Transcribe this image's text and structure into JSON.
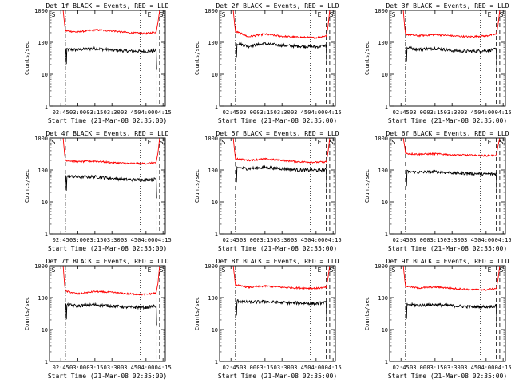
{
  "colors": {
    "events": "#000000",
    "lld": "#ff0000",
    "frame": "#000000"
  },
  "chart_data": [
    {
      "type": "line",
      "title": "Det 1f BLACK = Events, RED = LLD",
      "xlabel": "Start Time (21-Mar-08 02:35:00)",
      "ylabel": "Counts/sec",
      "yscale": "log",
      "ylim": [
        1,
        1000
      ],
      "xlim": [
        "02:35",
        "04:17"
      ],
      "x_ticks": [
        "02:45",
        "03:00",
        "03:15",
        "03:30",
        "03:45",
        "04:00",
        "04:15"
      ],
      "y_ticks": [
        "1",
        "10",
        "100",
        "1000"
      ],
      "markers": [
        {
          "label": "S",
          "time": "02:35"
        },
        {
          "label": "E",
          "time": "04:03"
        },
        {
          "label": "S",
          "time": "04:14"
        }
      ],
      "vlines": [
        {
          "time": "02:49",
          "style": "dash-dot"
        },
        {
          "time": "03:55",
          "style": "dotted"
        },
        {
          "time": "04:09",
          "style": "dashed"
        },
        {
          "time": "04:12",
          "style": "dashed"
        }
      ],
      "series": [
        {
          "name": "Events",
          "x": [
            "02:49",
            "03:00",
            "03:15",
            "03:30",
            "03:45",
            "04:00",
            "04:09"
          ],
          "values": [
            60,
            58,
            64,
            57,
            53,
            52,
            55
          ]
        },
        {
          "name": "LLD",
          "x": [
            "02:49",
            "03:00",
            "03:15",
            "03:30",
            "03:45",
            "04:00",
            "04:09"
          ],
          "values": [
            230,
            210,
            245,
            230,
            200,
            190,
            210
          ]
        }
      ]
    },
    {
      "type": "line",
      "title": "Det 2f BLACK = Events, RED = LLD",
      "xlabel": "Start Time (21-Mar-08 02:35:00)",
      "ylabel": "Counts/sec",
      "yscale": "log",
      "ylim": [
        1,
        1000
      ],
      "xlim": [
        "02:35",
        "04:17"
      ],
      "x_ticks": [
        "02:45",
        "03:00",
        "03:15",
        "03:30",
        "03:45",
        "04:00",
        "04:15"
      ],
      "y_ticks": [
        "1",
        "10",
        "100",
        "1000"
      ],
      "markers": [
        {
          "label": "S",
          "time": "02:35"
        },
        {
          "label": "E",
          "time": "04:03"
        },
        {
          "label": "S",
          "time": "04:14"
        }
      ],
      "vlines": [
        {
          "time": "02:49",
          "style": "dash-dot"
        },
        {
          "time": "03:55",
          "style": "dotted"
        },
        {
          "time": "04:09",
          "style": "dashed"
        },
        {
          "time": "04:12",
          "style": "dashed"
        }
      ],
      "series": [
        {
          "name": "Events",
          "x": [
            "02:49",
            "03:00",
            "03:15",
            "03:30",
            "03:45",
            "04:00",
            "04:09"
          ],
          "values": [
            95,
            75,
            90,
            80,
            75,
            72,
            80
          ]
        },
        {
          "name": "LLD",
          "x": [
            "02:49",
            "03:00",
            "03:15",
            "03:30",
            "03:45",
            "04:00",
            "04:09"
          ],
          "values": [
            220,
            150,
            180,
            155,
            145,
            140,
            160
          ]
        }
      ]
    },
    {
      "type": "line",
      "title": "Det 3f BLACK = Events, RED = LLD",
      "xlabel": "Start Time (21-Mar-08 02:35:00)",
      "ylabel": "Counts/sec",
      "yscale": "log",
      "ylim": [
        1,
        1000
      ],
      "xlim": [
        "02:35",
        "04:17"
      ],
      "x_ticks": [
        "02:45",
        "03:00",
        "03:15",
        "03:30",
        "03:45",
        "04:00",
        "04:15"
      ],
      "y_ticks": [
        "1",
        "10",
        "100",
        "1000"
      ],
      "markers": [
        {
          "label": "S",
          "time": "02:35"
        },
        {
          "label": "E",
          "time": "04:03"
        },
        {
          "label": "S",
          "time": "04:14"
        }
      ],
      "vlines": [
        {
          "time": "02:49",
          "style": "dash-dot"
        },
        {
          "time": "03:55",
          "style": "dotted"
        },
        {
          "time": "04:09",
          "style": "dashed"
        },
        {
          "time": "04:12",
          "style": "dashed"
        }
      ],
      "series": [
        {
          "name": "Events",
          "x": [
            "02:49",
            "03:00",
            "03:15",
            "03:30",
            "03:45",
            "04:00",
            "04:09"
          ],
          "values": [
            70,
            60,
            65,
            55,
            52,
            55,
            60
          ]
        },
        {
          "name": "LLD",
          "x": [
            "02:49",
            "03:00",
            "03:15",
            "03:30",
            "03:45",
            "04:00",
            "04:09"
          ],
          "values": [
            180,
            160,
            175,
            160,
            150,
            160,
            180
          ]
        }
      ]
    },
    {
      "type": "line",
      "title": "Det 4f BLACK = Events, RED = LLD",
      "xlabel": "Start Time (21-Mar-08 02:35:00)",
      "ylabel": "Counts/sec",
      "yscale": "log",
      "ylim": [
        1,
        1000
      ],
      "xlim": [
        "02:35",
        "04:17"
      ],
      "x_ticks": [
        "02:45",
        "03:00",
        "03:15",
        "03:30",
        "03:45",
        "04:00",
        "04:15"
      ],
      "y_ticks": [
        "1",
        "10",
        "100",
        "1000"
      ],
      "markers": [
        {
          "label": "S",
          "time": "02:35"
        },
        {
          "label": "E",
          "time": "04:03"
        },
        {
          "label": "S",
          "time": "04:14"
        }
      ],
      "vlines": [
        {
          "time": "02:49",
          "style": "dash-dot"
        },
        {
          "time": "03:55",
          "style": "dotted"
        },
        {
          "time": "04:09",
          "style": "dashed"
        },
        {
          "time": "04:12",
          "style": "dashed"
        }
      ],
      "series": [
        {
          "name": "Events",
          "x": [
            "02:49",
            "03:00",
            "03:15",
            "03:30",
            "03:45",
            "04:00",
            "04:09"
          ],
          "values": [
            65,
            60,
            62,
            55,
            50,
            50,
            52
          ]
        },
        {
          "name": "LLD",
          "x": [
            "02:49",
            "03:00",
            "03:15",
            "03:30",
            "03:45",
            "04:00",
            "04:09"
          ],
          "values": [
            200,
            180,
            190,
            170,
            160,
            160,
            170
          ]
        }
      ]
    },
    {
      "type": "line",
      "title": "Det 5f BLACK = Events, RED = LLD",
      "xlabel": "Start Time (21-Mar-08 02:35:00)",
      "ylabel": "Counts/sec",
      "yscale": "log",
      "ylim": [
        1,
        1000
      ],
      "xlim": [
        "02:35",
        "04:17"
      ],
      "x_ticks": [
        "02:45",
        "03:00",
        "03:15",
        "03:30",
        "03:45",
        "04:00",
        "04:15"
      ],
      "y_ticks": [
        "1",
        "10",
        "100",
        "1000"
      ],
      "markers": [
        {
          "label": "S",
          "time": "02:35"
        },
        {
          "label": "E",
          "time": "04:03"
        },
        {
          "label": "S",
          "time": "04:14"
        }
      ],
      "vlines": [
        {
          "time": "02:49",
          "style": "dash-dot"
        },
        {
          "time": "03:55",
          "style": "dotted"
        },
        {
          "time": "04:09",
          "style": "dashed"
        },
        {
          "time": "04:12",
          "style": "dashed"
        }
      ],
      "series": [
        {
          "name": "Events",
          "x": [
            "02:49",
            "03:00",
            "03:15",
            "03:30",
            "03:45",
            "04:00",
            "04:09"
          ],
          "values": [
            120,
            110,
            120,
            110,
            100,
            98,
            100
          ]
        },
        {
          "name": "LLD",
          "x": [
            "02:49",
            "03:00",
            "03:15",
            "03:30",
            "03:45",
            "04:00",
            "04:09"
          ],
          "values": [
            230,
            200,
            220,
            200,
            180,
            175,
            180
          ]
        }
      ]
    },
    {
      "type": "line",
      "title": "Det 6f BLACK = Events, RED = LLD",
      "xlabel": "Start Time (21-Mar-08 02:35:00)",
      "ylabel": "Counts/sec",
      "yscale": "log",
      "ylim": [
        1,
        1000
      ],
      "xlim": [
        "02:35",
        "04:17"
      ],
      "x_ticks": [
        "02:45",
        "03:00",
        "03:15",
        "03:30",
        "03:45",
        "04:00",
        "04:15"
      ],
      "y_ticks": [
        "1",
        "10",
        "100",
        "1000"
      ],
      "markers": [
        {
          "label": "S",
          "time": "02:35"
        },
        {
          "label": "E",
          "time": "04:03"
        },
        {
          "label": "S",
          "time": "04:14"
        }
      ],
      "vlines": [
        {
          "time": "02:49",
          "style": "dash-dot"
        },
        {
          "time": "03:55",
          "style": "dotted"
        },
        {
          "time": "04:09",
          "style": "dashed"
        },
        {
          "time": "04:12",
          "style": "dashed"
        }
      ],
      "series": [
        {
          "name": "Events",
          "x": [
            "02:49",
            "03:00",
            "03:15",
            "03:30",
            "03:45",
            "04:00",
            "04:09"
          ],
          "values": [
            90,
            85,
            88,
            82,
            78,
            75,
            75
          ]
        },
        {
          "name": "LLD",
          "x": [
            "02:49",
            "03:00",
            "03:15",
            "03:30",
            "03:45",
            "04:00",
            "04:09"
          ],
          "values": [
            330,
            310,
            320,
            300,
            290,
            280,
            290
          ]
        }
      ]
    },
    {
      "type": "line",
      "title": "Det 7f BLACK = Events, RED = LLD",
      "xlabel": "Start Time (21-Mar-08 02:35:00)",
      "ylabel": "Counts/sec",
      "yscale": "log",
      "ylim": [
        1,
        1000
      ],
      "xlim": [
        "02:35",
        "04:17"
      ],
      "x_ticks": [
        "02:45",
        "03:00",
        "03:15",
        "03:30",
        "03:45",
        "04:00",
        "04:15"
      ],
      "y_ticks": [
        "1",
        "10",
        "100",
        "1000"
      ],
      "markers": [
        {
          "label": "S",
          "time": "02:35"
        },
        {
          "label": "E",
          "time": "04:03"
        },
        {
          "label": "S",
          "time": "04:14"
        }
      ],
      "vlines": [
        {
          "time": "02:49",
          "style": "dash-dot"
        },
        {
          "time": "03:55",
          "style": "dotted"
        },
        {
          "time": "04:09",
          "style": "dashed"
        },
        {
          "time": "04:12",
          "style": "dashed"
        }
      ],
      "series": [
        {
          "name": "Events",
          "x": [
            "02:49",
            "03:00",
            "03:15",
            "03:30",
            "03:45",
            "04:00",
            "04:09"
          ],
          "values": [
            60,
            55,
            60,
            55,
            50,
            50,
            55
          ]
        },
        {
          "name": "LLD",
          "x": [
            "02:49",
            "03:00",
            "03:15",
            "03:30",
            "03:45",
            "04:00",
            "04:09"
          ],
          "values": [
            160,
            130,
            155,
            145,
            130,
            125,
            140
          ]
        }
      ]
    },
    {
      "type": "line",
      "title": "Det 8f BLACK = Events, RED = LLD",
      "xlabel": "Start Time (21-Mar-08 02:35:00)",
      "ylabel": "Counts/sec",
      "yscale": "log",
      "ylim": [
        1,
        1000
      ],
      "xlim": [
        "02:35",
        "04:17"
      ],
      "x_ticks": [
        "02:45",
        "03:00",
        "03:15",
        "03:30",
        "03:45",
        "04:00",
        "04:15"
      ],
      "y_ticks": [
        "1",
        "10",
        "100",
        "1000"
      ],
      "markers": [
        {
          "label": "S",
          "time": "02:35"
        },
        {
          "label": "E",
          "time": "04:03"
        },
        {
          "label": "S",
          "time": "04:14"
        }
      ],
      "vlines": [
        {
          "time": "02:49",
          "style": "dash-dot"
        },
        {
          "time": "03:55",
          "style": "dotted"
        },
        {
          "time": "04:09",
          "style": "dashed"
        },
        {
          "time": "04:12",
          "style": "dashed"
        }
      ],
      "series": [
        {
          "name": "Events",
          "x": [
            "02:49",
            "03:00",
            "03:15",
            "03:30",
            "03:45",
            "04:00",
            "04:09"
          ],
          "values": [
            80,
            72,
            75,
            70,
            68,
            66,
            70
          ]
        },
        {
          "name": "LLD",
          "x": [
            "02:49",
            "03:00",
            "03:15",
            "03:30",
            "03:45",
            "04:00",
            "04:09"
          ],
          "values": [
            250,
            210,
            230,
            210,
            200,
            195,
            210
          ]
        }
      ]
    },
    {
      "type": "line",
      "title": "Det 9f BLACK = Events, RED = LLD",
      "xlabel": "Start Time (21-Mar-08 02:35:00)",
      "ylabel": "Counts/sec",
      "yscale": "log",
      "ylim": [
        1,
        1000
      ],
      "xlim": [
        "02:35",
        "04:17"
      ],
      "x_ticks": [
        "02:45",
        "03:00",
        "03:15",
        "03:30",
        "03:45",
        "04:00",
        "04:15"
      ],
      "y_ticks": [
        "1",
        "10",
        "100",
        "1000"
      ],
      "markers": [
        {
          "label": "S",
          "time": "02:35"
        },
        {
          "label": "E",
          "time": "04:03"
        },
        {
          "label": "S",
          "time": "04:14"
        }
      ],
      "vlines": [
        {
          "time": "02:49",
          "style": "dash-dot"
        },
        {
          "time": "03:55",
          "style": "dotted"
        },
        {
          "time": "04:09",
          "style": "dashed"
        },
        {
          "time": "04:12",
          "style": "dashed"
        }
      ],
      "series": [
        {
          "name": "Events",
          "x": [
            "02:49",
            "03:00",
            "03:15",
            "03:30",
            "03:45",
            "04:00",
            "04:09"
          ],
          "values": [
            62,
            58,
            60,
            56,
            52,
            52,
            55
          ]
        },
        {
          "name": "LLD",
          "x": [
            "02:49",
            "03:00",
            "03:15",
            "03:30",
            "03:45",
            "04:00",
            "04:09"
          ],
          "values": [
            230,
            200,
            215,
            195,
            180,
            175,
            195
          ]
        }
      ]
    }
  ]
}
